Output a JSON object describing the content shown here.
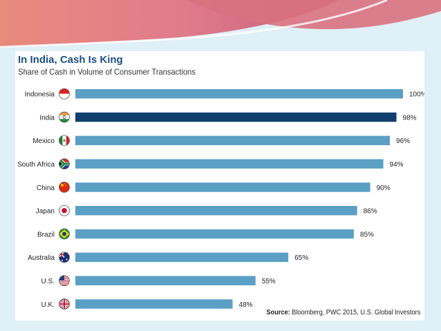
{
  "chart_data": {
    "type": "bar",
    "orientation": "horizontal",
    "title": "In India, Cash Is King",
    "subtitle": "Share of Cash in Volume of Consumer Transactions",
    "categories": [
      "Indonesia",
      "India",
      "Mexico",
      "South Africa",
      "China",
      "Japan",
      "Brazil",
      "Australia",
      "U.S.",
      "U.K."
    ],
    "values": [
      100,
      98,
      96,
      94,
      90,
      86,
      85,
      65,
      55,
      48
    ],
    "value_labels": [
      "100%",
      "98%",
      "96%",
      "94%",
      "90%",
      "86%",
      "85%",
      "65%",
      "55%",
      "48%"
    ],
    "xlim": [
      0,
      100
    ],
    "highlight": "India",
    "colors": {
      "bar": "#5b9fc5",
      "highlight": "#0f3f6e",
      "title": "#1c4f82"
    },
    "flag_icons": [
      "indonesia-flag-icon",
      "india-flag-icon",
      "mexico-flag-icon",
      "south-africa-flag-icon",
      "china-flag-icon",
      "japan-flag-icon",
      "brazil-flag-icon",
      "australia-flag-icon",
      "us-flag-icon",
      "uk-flag-icon"
    ],
    "grid": false,
    "legend": "none"
  },
  "source": {
    "label": "Source:",
    "text": " Bloomberg, PWC 2015, U.S. Global Investors"
  }
}
